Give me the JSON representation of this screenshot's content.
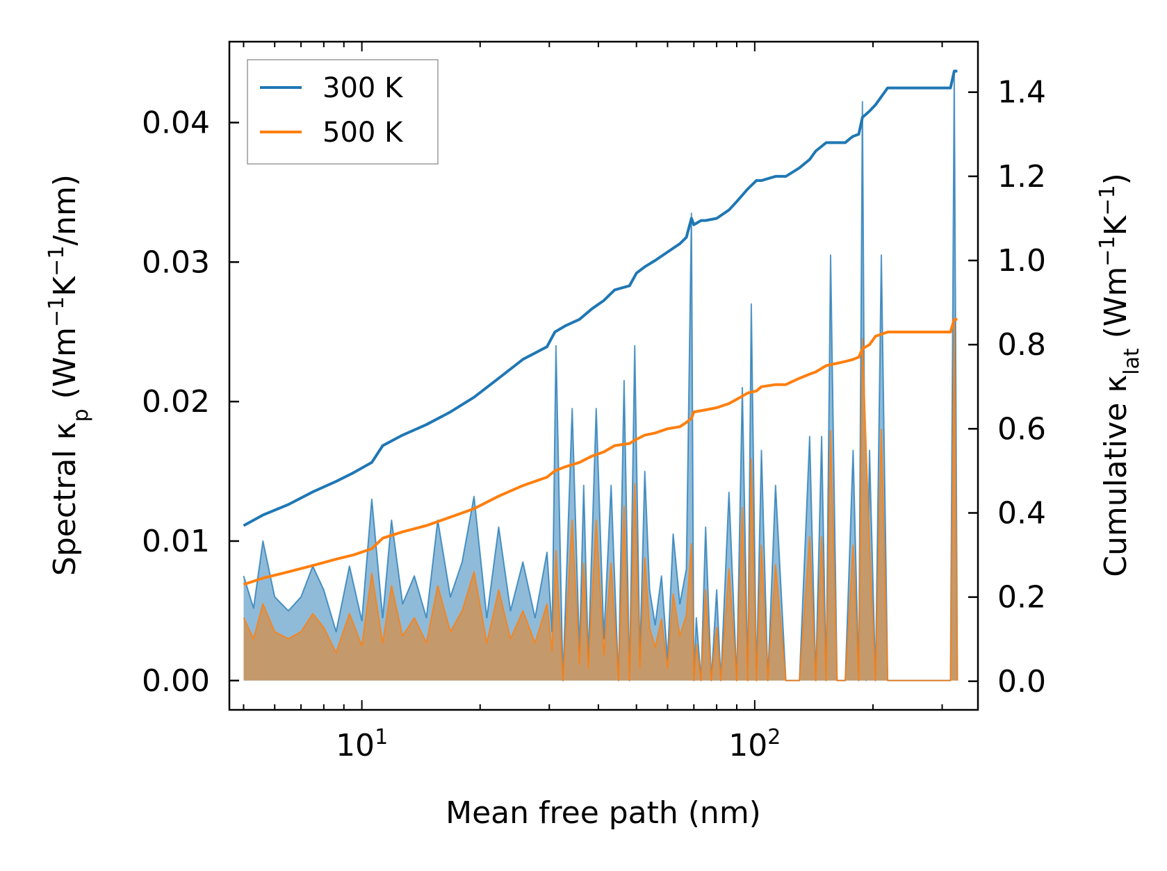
{
  "chart_data": {
    "type": "line",
    "title": "",
    "xlabel": "Mean free path (nm)",
    "ylabel_left": {
      "main": "Spectral κ",
      "sub": "p",
      "unit_open": " (Wm",
      "sup1": "−1",
      "mid": "K",
      "sup2": "−1",
      "unit_close": "/nm)"
    },
    "ylabel_right": {
      "main": "Cumulative κ",
      "sub": "lat",
      "unit_open": " (Wm",
      "sup1": "−1",
      "mid": "K",
      "sup2": "−1",
      "unit_close": ")"
    },
    "x_scale": "log",
    "xlim": [
      4.6,
      370
    ],
    "ylim_left": [
      -0.0021,
      0.0458
    ],
    "ylim_right": [
      -0.068,
      1.52
    ],
    "x_major_ticks": [
      {
        "value": 10,
        "base": "10",
        "exp": "1"
      },
      {
        "value": 100,
        "base": "10",
        "exp": "2"
      }
    ],
    "y_left_ticks": [
      {
        "value": 0.0,
        "label": "0.00"
      },
      {
        "value": 0.01,
        "label": "0.01"
      },
      {
        "value": 0.02,
        "label": "0.02"
      },
      {
        "value": 0.03,
        "label": "0.03"
      },
      {
        "value": 0.04,
        "label": "0.04"
      }
    ],
    "y_right_ticks": [
      {
        "value": 0.0,
        "label": "0.0"
      },
      {
        "value": 0.2,
        "label": "0.2"
      },
      {
        "value": 0.4,
        "label": "0.4"
      },
      {
        "value": 0.6,
        "label": "0.6"
      },
      {
        "value": 0.8,
        "label": "0.8"
      },
      {
        "value": 1.0,
        "label": "1.0"
      },
      {
        "value": 1.2,
        "label": "1.2"
      },
      {
        "value": 1.4,
        "label": "1.4"
      }
    ],
    "legend": {
      "position": "top-left",
      "entries": [
        {
          "label": "300 K",
          "color": "#1f77b4"
        },
        {
          "label": "500 K",
          "color": "#ff7f0e"
        }
      ]
    },
    "series": [
      {
        "name": "300 K",
        "color": "#1f77b4",
        "spectral": {
          "x": [
            5.0,
            5.3,
            5.6,
            6.0,
            6.5,
            7.0,
            7.5,
            8.0,
            8.6,
            9.3,
            10.0,
            10.6,
            11.3,
            11.9,
            12.7,
            13.6,
            14.6,
            15.6,
            16.8,
            18.0,
            19.3,
            20.8,
            22.3,
            23.9,
            25.7,
            27.6,
            29.6,
            30.5,
            31.2,
            32.5,
            34.3,
            35.8,
            36.7,
            37.7,
            39.5,
            41.3,
            43.1,
            45.0,
            46.5,
            48.0,
            49.5,
            51.0,
            52.5,
            54.0,
            55.8,
            57.9,
            60.0,
            62.0,
            64.5,
            67.0,
            69.0,
            70.0,
            71.0,
            73.0,
            75.0,
            77.5,
            80.0,
            82.0,
            86.0,
            90.0,
            93.0,
            96.0,
            98.0,
            101.0,
            104.0,
            108.0,
            113.0,
            120.0,
            130.0,
            138.0,
            143.0,
            148.0,
            152.0,
            156.0,
            162.0,
            170.0,
            178.0,
            184.0,
            188.0,
            192.0,
            196.0,
            203.0,
            210.0,
            218.0,
            222.0,
            226.0,
            235.0,
            315.0,
            322.0,
            328.0
          ],
          "values": [
            0.0075,
            0.0052,
            0.01,
            0.006,
            0.005,
            0.006,
            0.0082,
            0.0065,
            0.0035,
            0.0082,
            0.0043,
            0.013,
            0.0045,
            0.0115,
            0.0055,
            0.0075,
            0.0045,
            0.0115,
            0.006,
            0.0085,
            0.0132,
            0.0045,
            0.011,
            0.005,
            0.0085,
            0.0045,
            0.0092,
            0.0035,
            0.024,
            0.0,
            0.0195,
            0.002,
            0.014,
            0.0015,
            0.0195,
            0.003,
            0.014,
            0.0,
            0.0215,
            0.0,
            0.024,
            0.0015,
            0.015,
            0.0065,
            0.004,
            0.0075,
            0.0015,
            0.0105,
            0.0055,
            0.008,
            0.0335,
            0.0,
            0.0045,
            0.0,
            0.011,
            0.0,
            0.0065,
            0.0,
            0.0135,
            0.0,
            0.021,
            0.0,
            0.027,
            0.0,
            0.0165,
            0.0,
            0.014,
            0.0,
            0.0,
            0.0175,
            0.0,
            0.0175,
            0.0,
            0.0305,
            0.0,
            0.0,
            0.0165,
            0.0,
            0.0415,
            0.0,
            0.0165,
            0.0,
            0.0305,
            0.0,
            0.0,
            0.0,
            0.0,
            0.0,
            0.0435,
            0.0
          ]
        },
        "cumulative": {
          "x": [
            5.0,
            5.6,
            6.5,
            7.5,
            8.6,
            9.5,
            10.6,
            11.3,
            12.7,
            14.6,
            16.8,
            19.3,
            22.3,
            25.7,
            29.6,
            31.0,
            33.0,
            35.8,
            38.5,
            41.3,
            44.0,
            48.0,
            50.0,
            52.5,
            55.8,
            60.0,
            64.5,
            67.0,
            69.0,
            70.0,
            73.0,
            75.0,
            80.0,
            86.0,
            90.0,
            96.0,
            101.0,
            104.0,
            113.0,
            120.0,
            130.0,
            138.0,
            143.0,
            152.0,
            170.0,
            175.0,
            178.0,
            184.0,
            188.0,
            196.0,
            203.0,
            218.0,
            226.0,
            235.0,
            315.0,
            322.0,
            328.0
          ],
          "values": [
            0.37,
            0.395,
            0.42,
            0.45,
            0.475,
            0.495,
            0.52,
            0.56,
            0.585,
            0.61,
            0.64,
            0.675,
            0.72,
            0.765,
            0.795,
            0.83,
            0.845,
            0.86,
            0.885,
            0.905,
            0.93,
            0.94,
            0.97,
            0.985,
            1.0,
            1.02,
            1.04,
            1.055,
            1.1,
            1.085,
            1.095,
            1.095,
            1.1,
            1.12,
            1.14,
            1.17,
            1.19,
            1.19,
            1.2,
            1.2,
            1.22,
            1.24,
            1.26,
            1.28,
            1.28,
            1.29,
            1.295,
            1.3,
            1.34,
            1.355,
            1.37,
            1.41,
            1.41,
            1.41,
            1.41,
            1.45,
            1.45
          ]
        }
      },
      {
        "name": "500 K",
        "color": "#ff7f0e",
        "spectral": {
          "x": [
            5.0,
            5.3,
            5.6,
            6.0,
            6.5,
            7.0,
            7.5,
            8.0,
            8.6,
            9.3,
            10.0,
            10.6,
            11.3,
            11.9,
            12.7,
            13.6,
            14.6,
            15.6,
            16.8,
            18.0,
            19.3,
            20.8,
            22.3,
            23.9,
            25.7,
            27.6,
            29.6,
            30.5,
            31.2,
            32.5,
            34.3,
            35.8,
            36.7,
            37.7,
            39.5,
            41.3,
            43.1,
            45.0,
            46.5,
            48.0,
            49.5,
            51.0,
            52.5,
            54.0,
            55.8,
            57.9,
            60.0,
            62.0,
            64.5,
            67.0,
            69.0,
            70.0,
            71.0,
            73.0,
            75.0,
            77.5,
            80.0,
            82.0,
            86.0,
            90.0,
            93.0,
            96.0,
            98.0,
            101.0,
            104.0,
            108.0,
            113.0,
            120.0,
            130.0,
            138.0,
            143.0,
            148.0,
            152.0,
            156.0,
            162.0,
            170.0,
            178.0,
            184.0,
            188.0,
            196.0,
            203.0,
            210.0,
            218.0,
            222.0,
            226.0,
            235.0,
            315.0,
            322.0,
            328.0
          ],
          "values": [
            0.0045,
            0.003,
            0.0055,
            0.0035,
            0.003,
            0.0035,
            0.0048,
            0.0038,
            0.002,
            0.0048,
            0.0025,
            0.0077,
            0.0027,
            0.0068,
            0.0032,
            0.0045,
            0.0027,
            0.0068,
            0.0035,
            0.005,
            0.0078,
            0.0027,
            0.0065,
            0.003,
            0.005,
            0.0027,
            0.0055,
            0.0021,
            0.0093,
            0.0,
            0.0115,
            0.0012,
            0.0084,
            0.0009,
            0.0115,
            0.0018,
            0.0084,
            0.0,
            0.0125,
            0.0,
            0.0141,
            0.0009,
            0.0088,
            0.0038,
            0.0024,
            0.0044,
            0.0009,
            0.0062,
            0.0032,
            0.0047,
            0.0098,
            0.0,
            0.0026,
            0.0,
            0.0065,
            0.0,
            0.0038,
            0.0,
            0.008,
            0.0,
            0.0124,
            0.0,
            0.0159,
            0.0,
            0.0097,
            0.0,
            0.0083,
            0.0,
            0.0,
            0.0103,
            0.0,
            0.0103,
            0.0,
            0.0179,
            0.0,
            0.0,
            0.0097,
            0.0,
            0.0245,
            0.0097,
            0.0,
            0.018,
            0.0,
            0.0,
            0.0,
            0.0,
            0.0,
            0.0255,
            0.0
          ],
          "values_note": ""
        },
        "cumulative": {
          "x": [
            5.0,
            5.6,
            6.5,
            7.5,
            8.6,
            9.5,
            10.6,
            11.3,
            12.7,
            14.6,
            16.8,
            19.3,
            22.3,
            25.7,
            29.6,
            31.0,
            33.0,
            35.8,
            38.5,
            41.3,
            44.0,
            48.0,
            50.0,
            52.5,
            55.8,
            60.0,
            64.5,
            67.0,
            69.0,
            70.0,
            75.0,
            80.0,
            86.0,
            90.0,
            96.0,
            101.0,
            104.0,
            113.0,
            120.0,
            130.0,
            138.0,
            143.0,
            152.0,
            170.0,
            178.0,
            184.0,
            188.0,
            196.0,
            203.0,
            218.0,
            226.0,
            315.0,
            322.0,
            328.0
          ],
          "values": [
            0.23,
            0.245,
            0.26,
            0.275,
            0.29,
            0.3,
            0.315,
            0.34,
            0.355,
            0.37,
            0.39,
            0.41,
            0.44,
            0.465,
            0.485,
            0.5,
            0.51,
            0.52,
            0.535,
            0.545,
            0.56,
            0.565,
            0.575,
            0.585,
            0.59,
            0.6,
            0.605,
            0.615,
            0.625,
            0.64,
            0.645,
            0.65,
            0.66,
            0.67,
            0.685,
            0.69,
            0.7,
            0.705,
            0.705,
            0.72,
            0.73,
            0.735,
            0.75,
            0.76,
            0.765,
            0.77,
            0.79,
            0.8,
            0.82,
            0.83,
            0.83,
            0.83,
            0.86,
            0.86
          ]
        }
      }
    ]
  }
}
